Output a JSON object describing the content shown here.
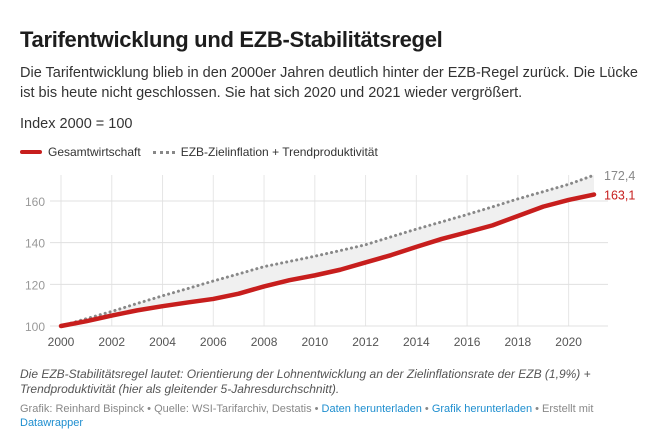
{
  "header": {
    "title": "Tarifentwicklung und EZB-Stabilitätsregel",
    "subtitle": "Die Tarifentwicklung blieb in den 2000er Jahren deutlich hinter der EZB-Regel zurück. Die Lücke ist bis heute nicht geschlossen. Sie hat sich 2020 und 2021 wieder vergrößert.",
    "index_note": "Index 2000 = 100"
  },
  "chart_data": {
    "type": "line",
    "title": "Tarifentwicklung und EZB-Stabilitätsregel",
    "xlabel": "",
    "ylabel": "",
    "x": [
      2000,
      2001,
      2002,
      2003,
      2004,
      2005,
      2006,
      2007,
      2008,
      2009,
      2010,
      2011,
      2012,
      2013,
      2014,
      2015,
      2016,
      2017,
      2018,
      2019,
      2020,
      2021
    ],
    "xticks": [
      "2000",
      "2002",
      "2004",
      "2006",
      "2008",
      "2010",
      "2012",
      "2014",
      "2016",
      "2018",
      "2020"
    ],
    "yticks": [
      "100",
      "120",
      "140",
      "160"
    ],
    "ylim": [
      100,
      175
    ],
    "grid": true,
    "legend_placement": "top-left",
    "series": [
      {
        "name": "Gesamtwirtschaft",
        "color": "#c71e1d",
        "style": "solid",
        "end_label": "163,1",
        "values": [
          100,
          102.3,
          105,
          107.5,
          109.5,
          111.3,
          113,
          115.5,
          119,
          122,
          124.3,
          127,
          130.5,
          134,
          138,
          141.8,
          145,
          148.3,
          152.8,
          157.3,
          160.5,
          163.1
        ]
      },
      {
        "name": "EZB-Zielinflation + Trendproduktivität",
        "color": "#888888",
        "style": "dotted",
        "end_label": "172,4",
        "values": [
          100,
          103.5,
          107,
          110.8,
          114.5,
          118,
          121.6,
          125,
          128.5,
          131,
          133.5,
          136.2,
          139,
          142.8,
          146.5,
          150,
          153.5,
          157.2,
          161,
          164.5,
          168,
          172.4
        ]
      }
    ]
  },
  "footer": {
    "note": "Die EZB-Stabilitätsregel lautet: Orientierung der Lohnentwicklung an der Zielinflationsrate der EZB (1,9%) + Trendproduktivität (hier als gleitender 5-Jahresdurchschnitt).",
    "credit": "Grafik: Reinhard Bispinck • Quelle: WSI-Tarifarchiv, Destatis • ",
    "link_data": "Daten herunterladen",
    "sep": " • ",
    "link_chart": "Grafik herunterladen",
    "made_with": " • Erstellt mit ",
    "link_dw": "Datawrapper"
  }
}
